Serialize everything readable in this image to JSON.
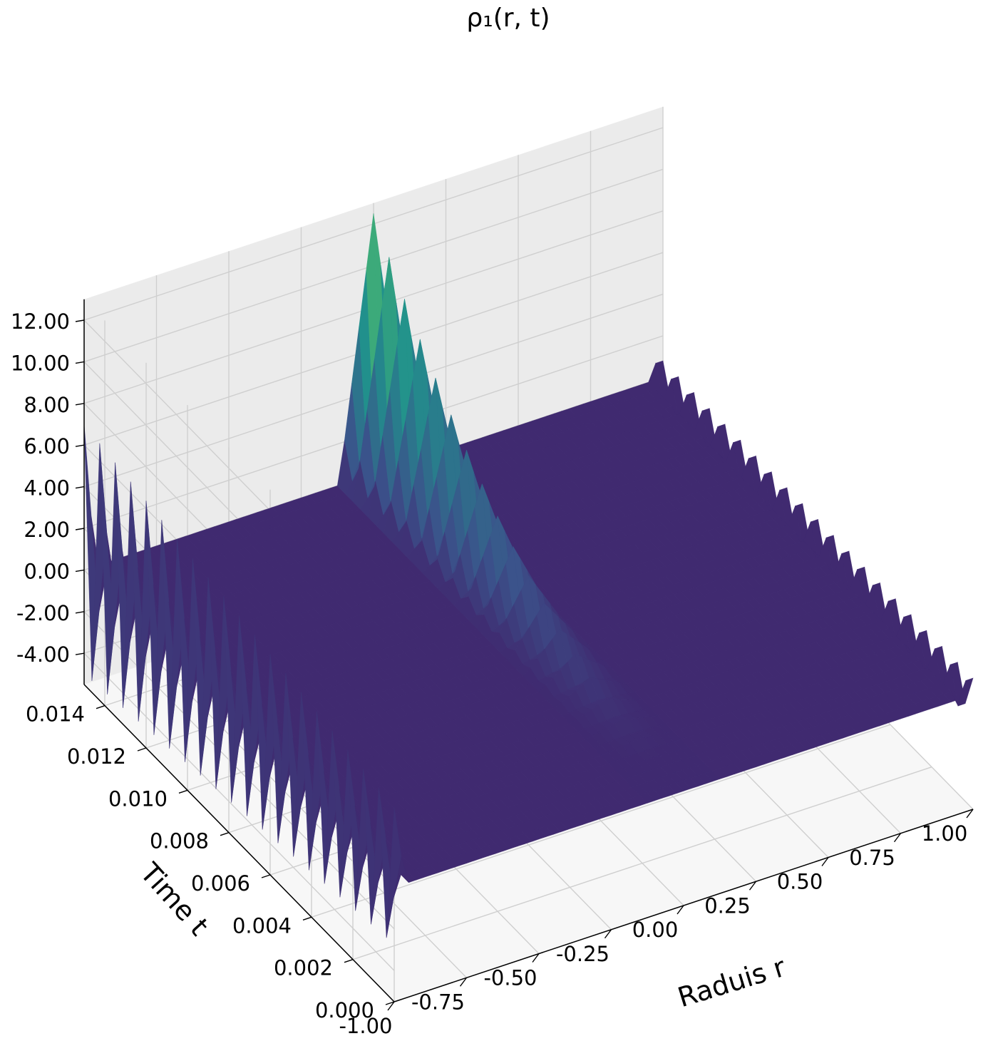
{
  "chart_data": {
    "type": "surface",
    "title": "ρ₁(r, t)",
    "xlabel": "Raduis r",
    "ylabel": "Time t",
    "zlabel": "",
    "xlim": [
      -1.0,
      1.0
    ],
    "ylim": [
      0.0,
      0.015
    ],
    "zlim": [
      -5.5,
      13.0
    ],
    "x_ticks": [
      "-1.00",
      "-0.75",
      "-0.50",
      "-0.25",
      "0.00",
      "0.25",
      "0.50",
      "0.75",
      "1.00"
    ],
    "y_ticks": [
      "0.000",
      "0.002",
      "0.004",
      "0.006",
      "0.008",
      "0.010",
      "0.012",
      "0.014"
    ],
    "z_ticks": [
      "-4.00",
      "-2.00",
      "0.00",
      "2.00",
      "4.00",
      "6.00",
      "8.00",
      "10.00",
      "12.00"
    ],
    "colormap": "viridis",
    "grid": true,
    "features": [
      {
        "r": -1.0,
        "t_range": [
          0.0,
          0.015
        ],
        "z_range": [
          -5.0,
          7.0
        ]
      },
      {
        "r": 0.0,
        "t_range": [
          0.0,
          0.015
        ],
        "z_range": [
          0.0,
          12.5
        ]
      },
      {
        "r": 1.0,
        "t_range": [
          0.0,
          0.015
        ],
        "z_range": [
          -1.0,
          1.0
        ]
      }
    ],
    "surface_baseline": 0.0
  },
  "colors": {
    "pane_left": "#f2f2f2",
    "pane_back": "#ebebeb",
    "pane_floor": "#f7f7f7",
    "grid": "#cfcfcf",
    "surface_base": "#46337e"
  }
}
